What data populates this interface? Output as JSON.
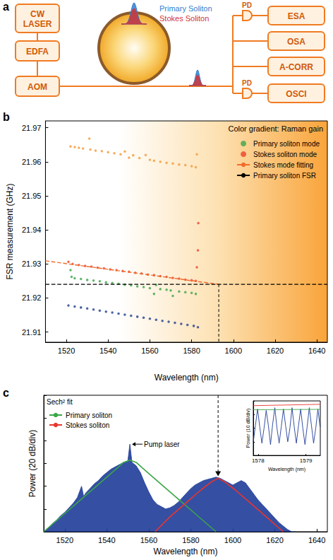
{
  "diagram": {
    "panel": "a",
    "sources": [
      "CW LASER",
      "EDFA",
      "AOM"
    ],
    "pulse_labels": [
      {
        "text": "Primary Soliton",
        "color": "#2f7fd0"
      },
      {
        "text": "Stokes Soliton",
        "color": "#d0353a"
      }
    ],
    "detector": "PD",
    "instruments": [
      "ESA",
      "OSA",
      "A-CORR",
      "OSCI"
    ]
  },
  "chart_data": [
    {
      "panel": "b",
      "type": "scatter",
      "xlabel": "Wavelength (nm)",
      "ylabel": "FSR measurement (GHz)",
      "xlim": [
        1510,
        1645
      ],
      "xticks": [
        1520,
        1540,
        1560,
        1580,
        1600,
        1620,
        1640
      ],
      "ylim": [
        21.907,
        21.972
      ],
      "yticks": [
        21.91,
        21.92,
        21.93,
        21.94,
        21.95,
        21.96,
        21.97
      ],
      "grid": false,
      "legend": "upper right",
      "annotations": [
        {
          "text": "Color gradient: Raman gain"
        }
      ],
      "series": [
        {
          "color": "#f39a3a",
          "marker": "circle",
          "x": [
            1522,
            1524,
            1526,
            1528,
            1531,
            1531.5,
            1534,
            1537,
            1540,
            1543,
            1546,
            1548,
            1550,
            1552,
            1555,
            1558,
            1560,
            1562,
            1565,
            1568,
            1571,
            1574,
            1577,
            1580,
            1582,
            1582.5
          ],
          "values": [
            21.9645,
            21.9643,
            21.9641,
            21.9639,
            21.9668,
            21.9636,
            21.9633,
            21.9631,
            21.9628,
            21.9625,
            21.9622,
            21.963,
            21.9612,
            21.9619,
            21.9611,
            21.962,
            21.9606,
            21.9603,
            21.96,
            21.9597,
            21.9595,
            21.9592,
            21.959,
            21.9587,
            21.9584,
            21.9622
          ]
        },
        {
          "name": "Primary soliton mode",
          "color": "#3aa648",
          "marker": "circle",
          "x": [
            1522,
            1522.5,
            1524,
            1527,
            1530,
            1533,
            1536,
            1539,
            1542,
            1545,
            1548,
            1551,
            1554,
            1557,
            1560,
            1562,
            1563,
            1565,
            1568,
            1570,
            1571,
            1574,
            1577,
            1580,
            1582
          ],
          "values": [
            21.9282,
            21.9262,
            21.9258,
            21.9256,
            21.9253,
            21.9251,
            21.9249,
            21.9246,
            21.9244,
            21.9242,
            21.9239,
            21.9237,
            21.9234,
            21.9232,
            21.9229,
            21.9212,
            21.9238,
            21.9226,
            21.9224,
            21.9222,
            21.9206,
            21.9219,
            21.9217,
            21.9215,
            21.9212
          ]
        },
        {
          "name": "Stokes soliton mode",
          "color": "#e8432a",
          "marker": "circle",
          "x": [
            1521,
            1523,
            1526,
            1529,
            1532,
            1535,
            1538,
            1541,
            1544,
            1547,
            1550,
            1553,
            1556,
            1559,
            1562,
            1565,
            1568,
            1571,
            1574,
            1577,
            1580,
            1582,
            1582.5,
            1583,
            1583.2
          ],
          "values": [
            21.9306,
            21.93,
            21.9297,
            21.9294,
            21.9292,
            21.9289,
            21.9287,
            21.9284,
            21.9282,
            21.9279,
            21.9277,
            21.9274,
            21.9272,
            21.9269,
            21.9267,
            21.9264,
            21.9262,
            21.9259,
            21.9257,
            21.9254,
            21.9252,
            21.925,
            21.929,
            21.934,
            21.942
          ]
        },
        {
          "color": "#23408f",
          "marker": "circle",
          "x": [
            1521,
            1524,
            1527,
            1530,
            1533,
            1536,
            1539,
            1542,
            1545,
            1548,
            1551,
            1554,
            1557,
            1560,
            1563,
            1566,
            1569,
            1572,
            1575,
            1578,
            1581,
            1583
          ],
          "values": [
            21.9178,
            21.9175,
            21.9172,
            21.9169,
            21.9166,
            21.9163,
            21.916,
            21.9157,
            21.9154,
            21.9151,
            21.9148,
            21.9145,
            21.9142,
            21.9139,
            21.9136,
            21.9133,
            21.913,
            21.9127,
            21.9124,
            21.9121,
            21.9118,
            21.9114
          ]
        },
        {
          "name": "Stokes mode fitting",
          "type": "line",
          "line_style": "dashed",
          "color": "#f26b2a",
          "x": [
            1510,
            1593
          ],
          "values": [
            21.9309,
            21.924
          ]
        },
        {
          "name": "Primary soliton FSR",
          "type": "line",
          "line_style": "dashed",
          "color": "#000000",
          "x": [
            1510,
            1645
          ],
          "values": [
            21.924,
            21.924
          ]
        }
      ]
    },
    {
      "panel": "c",
      "type": "line",
      "xlabel": "Wavelength (nm)",
      "ylabel": "Power (20 dB/div)",
      "xlim": [
        1510,
        1645
      ],
      "xticks": [
        1520,
        1540,
        1560,
        1580,
        1600,
        1620,
        1640
      ],
      "ylim": [
        0,
        120
      ],
      "yticks": [
        0,
        20,
        40,
        60,
        80,
        100,
        120
      ],
      "tick_labels": "x",
      "grid": false,
      "legend": "upper left",
      "legend_title": "Sech² fit",
      "annotations": [
        {
          "text": "Pump laser",
          "x": 1551,
          "y": 77
        }
      ],
      "series": [
        {
          "type": "area",
          "color": "#1f3c99",
          "x": [
            1510,
            1512,
            1514,
            1516,
            1518,
            1520,
            1522,
            1524,
            1526,
            1528,
            1529,
            1530,
            1532,
            1534,
            1536,
            1538,
            1540,
            1542,
            1544,
            1546,
            1548,
            1550,
            1551,
            1552,
            1554,
            1556,
            1558,
            1560,
            1562,
            1564,
            1566,
            1568,
            1570,
            1572,
            1574,
            1576,
            1578,
            1580,
            1582,
            1584,
            1586,
            1588,
            1590,
            1592,
            1594,
            1596,
            1598,
            1600,
            1602,
            1604,
            1606,
            1608,
            1610,
            1612,
            1614,
            1616,
            1618,
            1620,
            1622,
            1624,
            1626,
            1628,
            1630
          ],
          "values": [
            0,
            3,
            7,
            10,
            14,
            17,
            21,
            25,
            30,
            40,
            31,
            34,
            38,
            42,
            45,
            49,
            52,
            55,
            57,
            59,
            61,
            62,
            77,
            61,
            58,
            52,
            43,
            35,
            28,
            24,
            22,
            20,
            21,
            23,
            26,
            30,
            34,
            38,
            41,
            43,
            45,
            46,
            47,
            48,
            47,
            45,
            43,
            41,
            43,
            45,
            43,
            38,
            33,
            28,
            24,
            20,
            16,
            12,
            8,
            5,
            2,
            0,
            0
          ]
        },
        {
          "name": "Primary soliton",
          "color": "#3aa648",
          "x": [
            1510,
            1520,
            1530,
            1540,
            1545,
            1548,
            1551,
            1554,
            1557,
            1562,
            1572,
            1582,
            1592
          ],
          "values": [
            0,
            16,
            32,
            48,
            56,
            61,
            63,
            61,
            56,
            48,
            32,
            16,
            0
          ]
        },
        {
          "name": "Stokes soliton",
          "color": "#e8352e",
          "x": [
            1563,
            1570,
            1580,
            1585,
            1590,
            1593,
            1596,
            1601,
            1606,
            1616,
            1624
          ],
          "values": [
            0,
            13,
            29,
            37,
            44,
            47,
            44,
            37,
            29,
            13,
            0
          ]
        }
      ]
    },
    {
      "type": "line",
      "xlabel": "Wavelength (nm)",
      "ylabel": "Power (10 dB/div)",
      "xlim": [
        1577.9,
        1579.3
      ],
      "xticks": [
        1578,
        1579
      ],
      "ylim": [
        0,
        40
      ],
      "yticks": [
        0,
        10,
        20,
        30,
        40
      ],
      "tick_labels": "x",
      "grid": false,
      "series": [
        {
          "color": "#1f3c99",
          "x": [
            1577.9,
            1577.945,
            1577.99,
            1578.035,
            1578.08,
            1578.125,
            1578.17,
            1578.215,
            1578.26,
            1578.305,
            1578.35,
            1578.395,
            1578.44,
            1578.485,
            1578.53,
            1578.575,
            1578.62,
            1578.665,
            1578.71,
            1578.755,
            1578.8,
            1578.845,
            1578.89,
            1578.935,
            1578.98,
            1579.025,
            1579.07,
            1579.115,
            1579.16,
            1579.205,
            1579.25,
            1579.295
          ],
          "values": [
            10,
            22,
            34,
            21,
            9,
            20,
            33,
            22,
            8,
            23,
            35,
            20,
            9,
            21,
            34,
            22,
            10,
            20,
            35,
            21,
            9,
            22,
            34,
            20,
            8,
            21,
            35,
            22,
            9,
            20,
            34,
            21
          ]
        },
        {
          "color": "#e8352e",
          "x": [
            1577.9,
            1579.3
          ],
          "values": [
            36.5,
            37.5
          ]
        },
        {
          "color": "#3aa648",
          "x": [
            1577.9,
            1579.3
          ],
          "values": [
            33.5,
            33.8
          ]
        }
      ]
    }
  ]
}
